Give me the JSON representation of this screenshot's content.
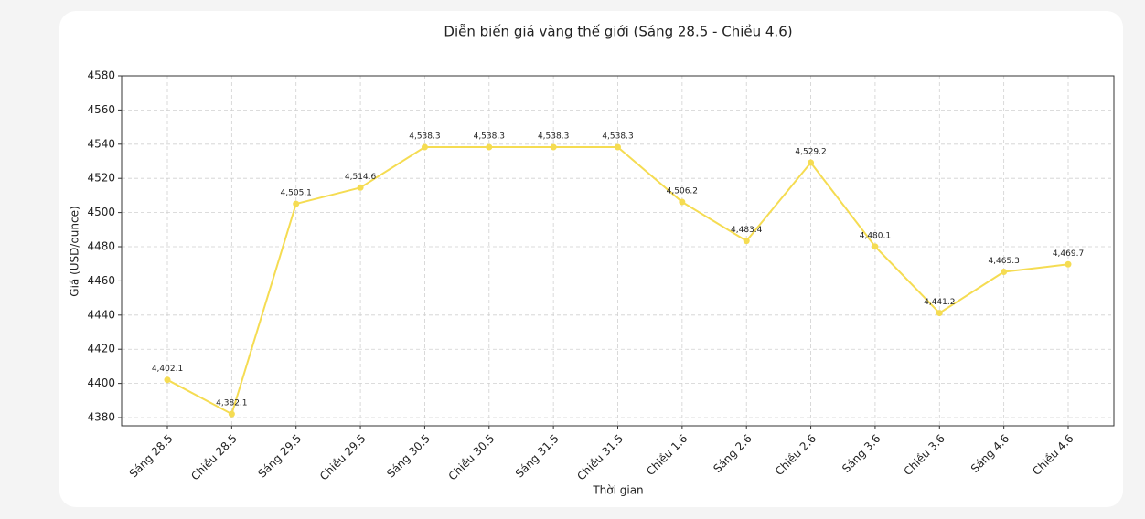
{
  "chart_data": {
    "type": "line",
    "title": "Diễn biến giá vàng thế giới (Sáng 28.5 - Chiều 4.6)",
    "x_label": "Thời gian",
    "y_label": "Giá (USD/ounce)",
    "categories": [
      "Sáng 28.5",
      "Chiều 28.5",
      "Sáng 29.5",
      "Chiều 29.5",
      "Sáng 30.5",
      "Chiều 30.5",
      "Sáng 31.5",
      "Chiều 31.5",
      "Chiều 1.6",
      "Sáng 2.6",
      "Chiều 2.6",
      "Sáng 3.6",
      "Chiều 3.6",
      "Sáng 4.6",
      "Chiều 4.6"
    ],
    "series": [
      {
        "color": "#f5dc52",
        "values": [
          4402.1,
          4382.1,
          4505.1,
          4514.6,
          4538.3,
          4538.3,
          4538.3,
          4538.3,
          4506.2,
          4483.4,
          4529.2,
          4480.1,
          4441.2,
          4465.3,
          4469.7
        ],
        "value_labels": [
          "4,402.1",
          "4,382.1",
          "4,505.1",
          "4,514.6",
          "4,538.3",
          "4,538.3",
          "4,538.3",
          "4,538.3",
          "4,506.2",
          "4,483.4",
          "4,529.2",
          "4,480.1",
          "4,441.2",
          "4,465.3",
          "4,469.7"
        ]
      }
    ],
    "ylim": [
      4375.2,
      4580
    ],
    "yticks": [
      4380,
      4400,
      4420,
      4440,
      4460,
      4480,
      4500,
      4520,
      4540,
      4560,
      4580
    ],
    "grid": true
  }
}
